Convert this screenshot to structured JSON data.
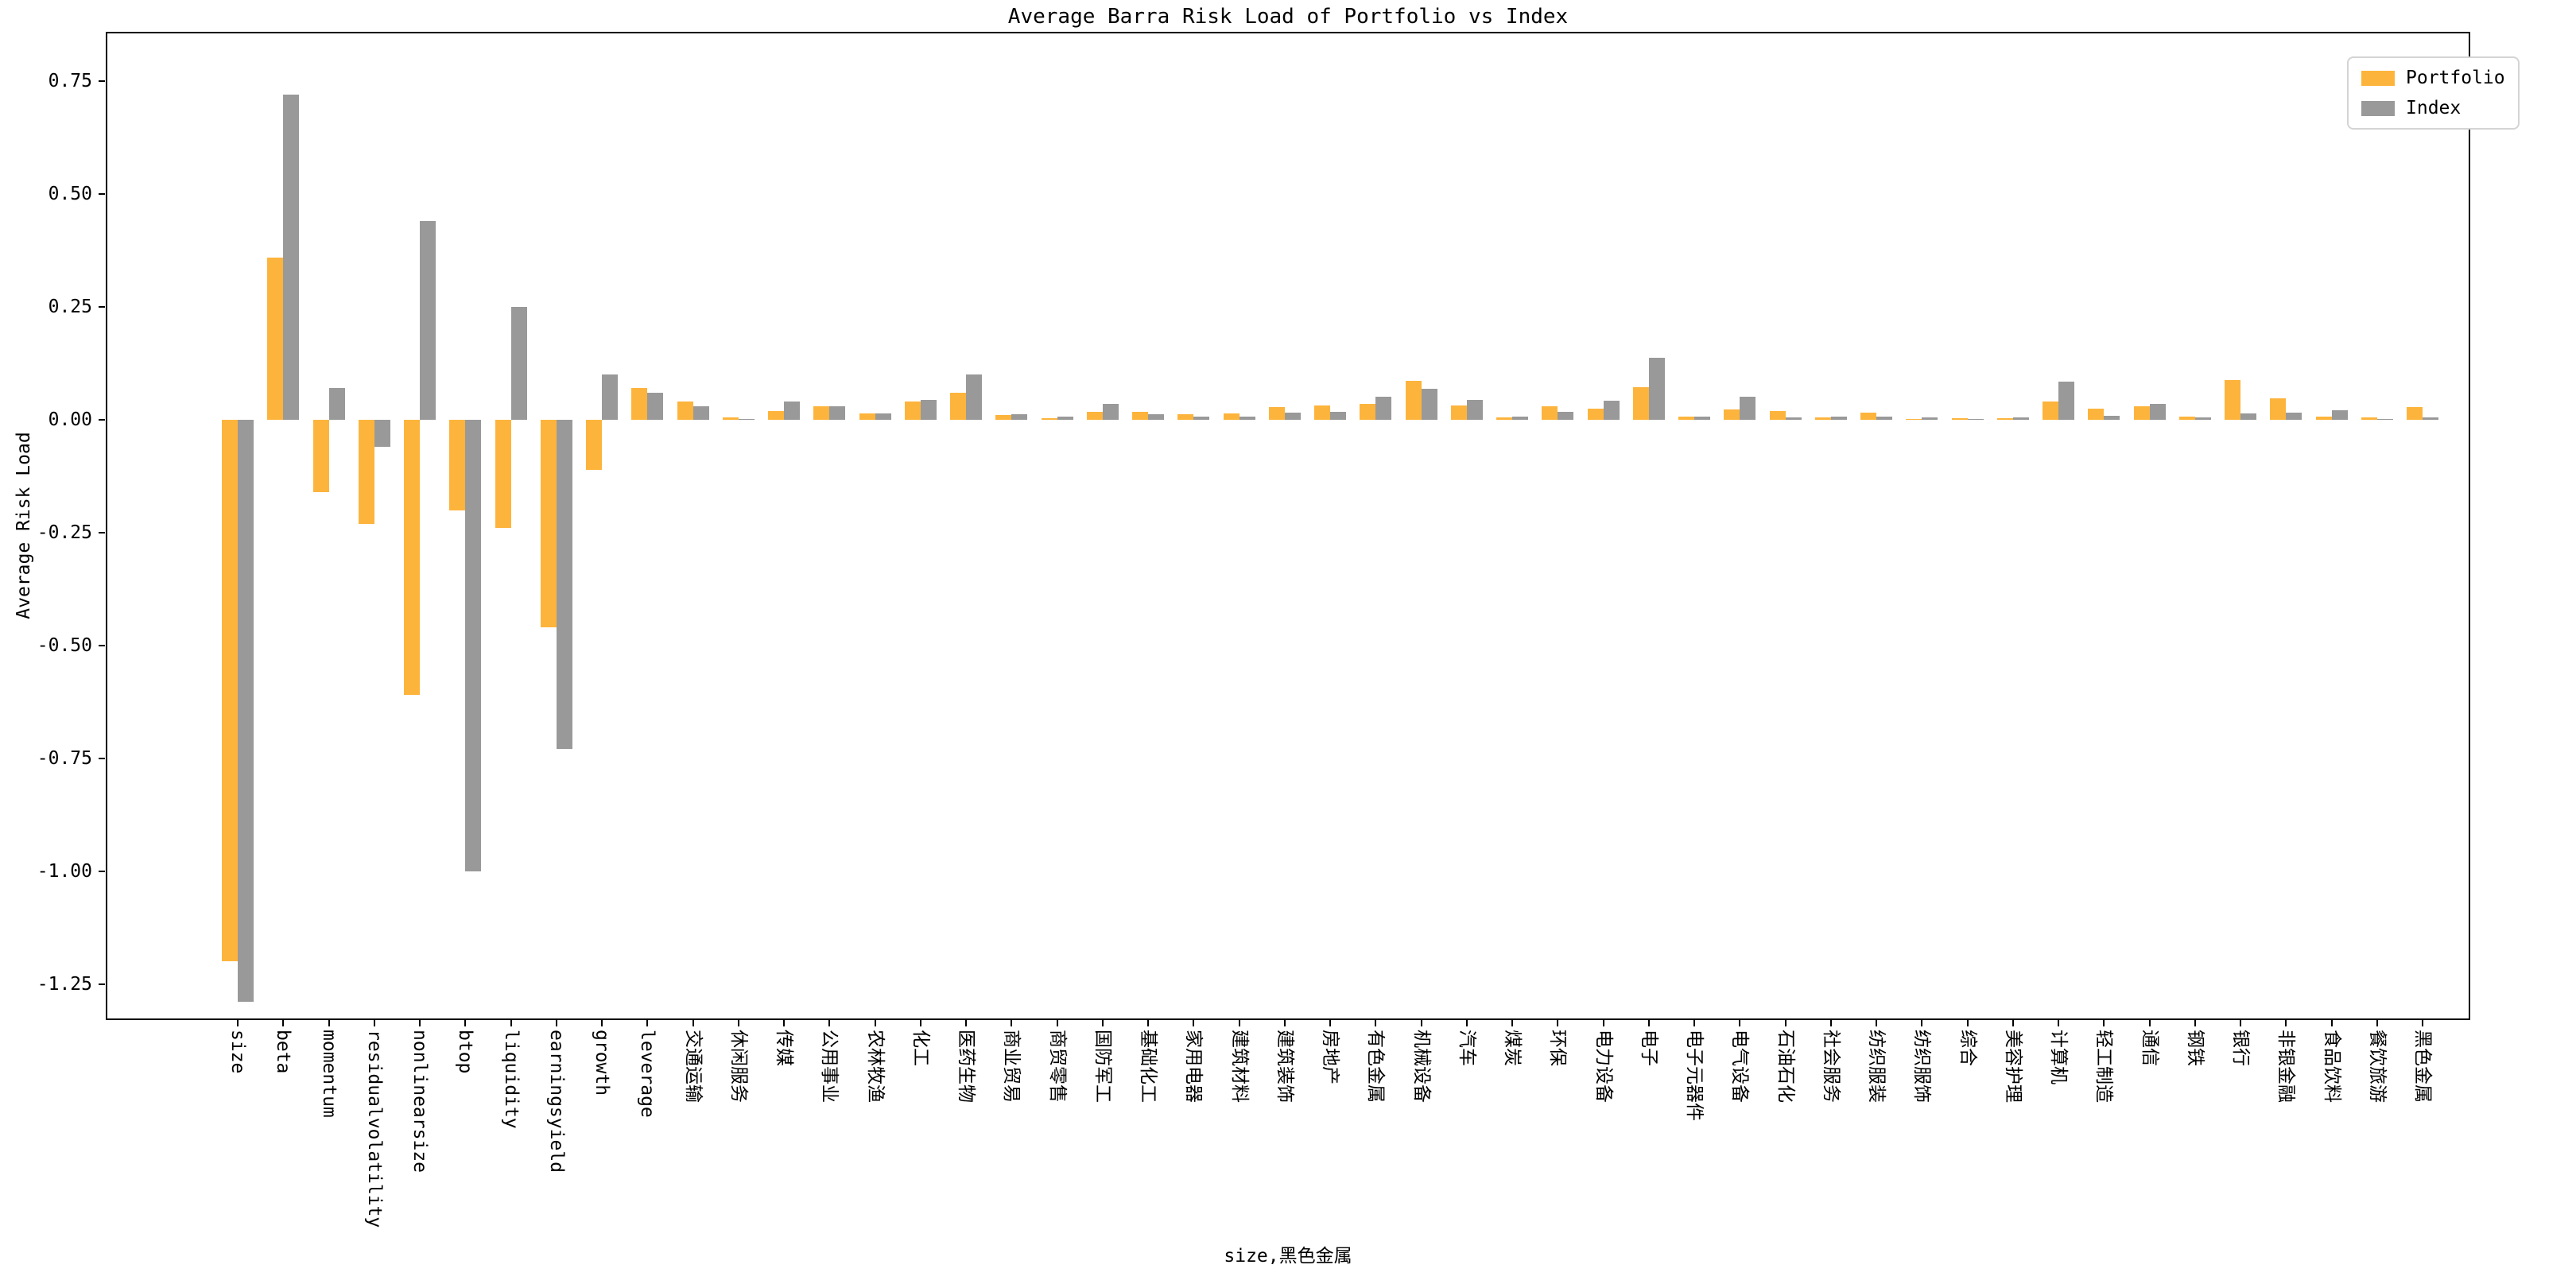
{
  "figure": {
    "title": "Average Barra Risk Load of Portfolio vs Index",
    "y_axis_label": "Average Risk Load",
    "x_axis_label": "size,黑色金属"
  },
  "chart_data": {
    "type": "bar",
    "title": "Average Barra Risk Load of Portfolio vs Index",
    "xlabel": "size,黑色金属",
    "ylabel": "Average Risk Load",
    "grid": false,
    "legend_position": "upper right",
    "ylim": [
      -1.33,
      0.86
    ],
    "yticks": [
      0.75,
      0.5,
      0.25,
      0.0,
      -0.25,
      -0.5,
      -0.75,
      -1.0,
      -1.25
    ],
    "ytick_labels": [
      "0.75",
      "0.50",
      "0.25",
      "0.00",
      "-0.25",
      "-0.50",
      "-0.75",
      "-1.00",
      "-1.25"
    ],
    "categories": [
      "size",
      "beta",
      "momentum",
      "residualvolatility",
      "nonlinearsize",
      "btop",
      "liquidity",
      "earningsyield",
      "growth",
      "leverage",
      "交通运输",
      "休闲服务",
      "传媒",
      "公用事业",
      "农林牧渔",
      "化工",
      "医药生物",
      "商业贸易",
      "商贸零售",
      "国防军工",
      "基础化工",
      "家用电器",
      "建筑材料",
      "建筑装饰",
      "房地产",
      "有色金属",
      "机械设备",
      "汽车",
      "煤炭",
      "环保",
      "电力设备",
      "电子",
      "电子元器件",
      "电气设备",
      "石油石化",
      "社会服务",
      "纺织服装",
      "纺织服饰",
      "综合",
      "美容护理",
      "计算机",
      "轻工制造",
      "通信",
      "钢铁",
      "银行",
      "非银金融",
      "食品饮料",
      "餐饮旅游",
      "黑色金属"
    ],
    "series": [
      {
        "name": "Portfolio",
        "color": "#FDB43C",
        "values": [
          -1.2,
          0.36,
          -0.16,
          -0.23,
          -0.61,
          -0.2,
          -0.24,
          -0.46,
          -0.11,
          0.07,
          0.04,
          0.005,
          0.02,
          0.03,
          0.015,
          0.04,
          0.06,
          0.01,
          0.004,
          0.017,
          0.018,
          0.012,
          0.015,
          0.029,
          0.032,
          0.035,
          0.086,
          0.032,
          0.005,
          0.031,
          0.024,
          0.073,
          0.008,
          0.023,
          0.02,
          0.006,
          0.016,
          0.002,
          0.004,
          0.004,
          0.04,
          0.025,
          0.03,
          0.007,
          0.089,
          0.048,
          0.008,
          0.005,
          0.029
        ]
      },
      {
        "name": "Index",
        "color": "#999999",
        "values": [
          -1.29,
          0.72,
          0.07,
          -0.06,
          0.44,
          -1.0,
          0.25,
          -0.73,
          0.1,
          0.06,
          0.03,
          0.002,
          0.04,
          0.03,
          0.015,
          0.045,
          0.1,
          0.013,
          0.008,
          0.036,
          0.012,
          0.008,
          0.007,
          0.016,
          0.017,
          0.052,
          0.069,
          0.044,
          0.008,
          0.018,
          0.042,
          0.138,
          0.007,
          0.051,
          0.006,
          0.007,
          0.008,
          0.005,
          0.001,
          0.005,
          0.085,
          0.009,
          0.035,
          0.005,
          0.015,
          0.016,
          0.021,
          0.002,
          0.006
        ]
      }
    ]
  }
}
